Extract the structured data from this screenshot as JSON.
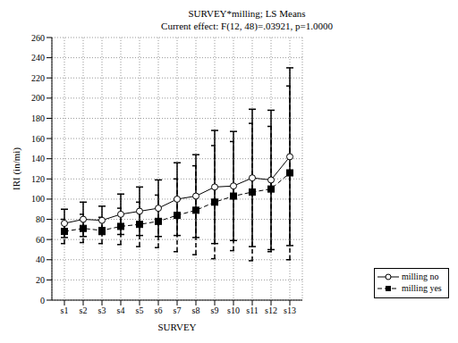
{
  "chart_data": {
    "type": "line",
    "title": "SURVEY*milling; LS Means",
    "subtitle": "Current effect: F(12, 48)=.03921, p=1.0000",
    "x_label": "SURVEY",
    "y_label": "IRI (in/mi)",
    "categories": [
      "s1",
      "s2",
      "s3",
      "s4",
      "s5",
      "s6",
      "s7",
      "s8",
      "s9",
      "s10",
      "s11",
      "s12",
      "s13"
    ],
    "series": [
      {
        "name": "milling no",
        "color": "#000000",
        "marker": "circle",
        "line_style": "solid",
        "values": [
          76,
          80,
          79,
          85,
          88,
          91,
          100,
          103,
          112,
          113,
          121,
          119,
          142
        ],
        "error": [
          14,
          17,
          14,
          20,
          24,
          28,
          36,
          41,
          56,
          54,
          68,
          69,
          88
        ]
      },
      {
        "name": "milling yes",
        "color": "#000000",
        "marker": "square",
        "line_style": "dashed",
        "values": [
          68,
          71,
          69,
          73,
          75,
          78,
          84,
          89,
          97,
          103,
          107,
          110,
          126
        ],
        "error": [
          12,
          14,
          13,
          18,
          22,
          26,
          36,
          44,
          56,
          54,
          68,
          62,
          86
        ]
      }
    ],
    "ylim": [
      0,
      260
    ],
    "yticks": [
      0,
      20,
      40,
      60,
      80,
      100,
      120,
      140,
      160,
      180,
      200,
      220,
      240,
      260
    ],
    "grid": true,
    "legend": "lower right"
  }
}
